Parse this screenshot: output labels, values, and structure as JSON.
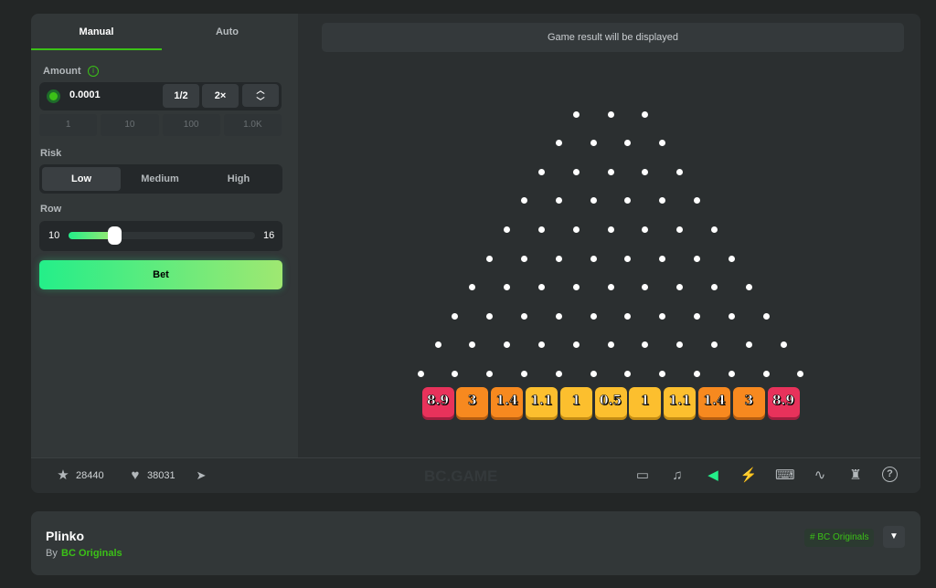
{
  "tabs": [
    {
      "label": "Manual",
      "active": true
    },
    {
      "label": "Auto",
      "active": false
    }
  ],
  "amount": {
    "label": "Amount",
    "value": "0.0001",
    "half": "1/2",
    "double": "2×",
    "quick": [
      "1",
      "10",
      "100",
      "1.0K"
    ]
  },
  "risk": {
    "label": "Risk",
    "options": [
      "Low",
      "Medium",
      "High"
    ],
    "selected": "Low"
  },
  "row": {
    "label": "Row",
    "min": "10",
    "max": "16",
    "value": 10
  },
  "bet_label": "Bet",
  "result_text": "Game result will be displayed",
  "board": {
    "rows": 10,
    "multipliers": [
      "8.9",
      "3",
      "1.4",
      "1.1",
      "1",
      "0.5",
      "1",
      "1.1",
      "1.4",
      "3",
      "8.9"
    ]
  },
  "colors": {
    "accent": "#3bc117",
    "high": "#e8325b",
    "mid": "#f7891f",
    "low": "#fcbf2e"
  },
  "footer": {
    "stars": "28440",
    "likes": "38031",
    "brand": "BC.GAME"
  },
  "info": {
    "title": "Plinko",
    "by": "By",
    "author": "BC Originals",
    "tag": "# BC Originals"
  }
}
